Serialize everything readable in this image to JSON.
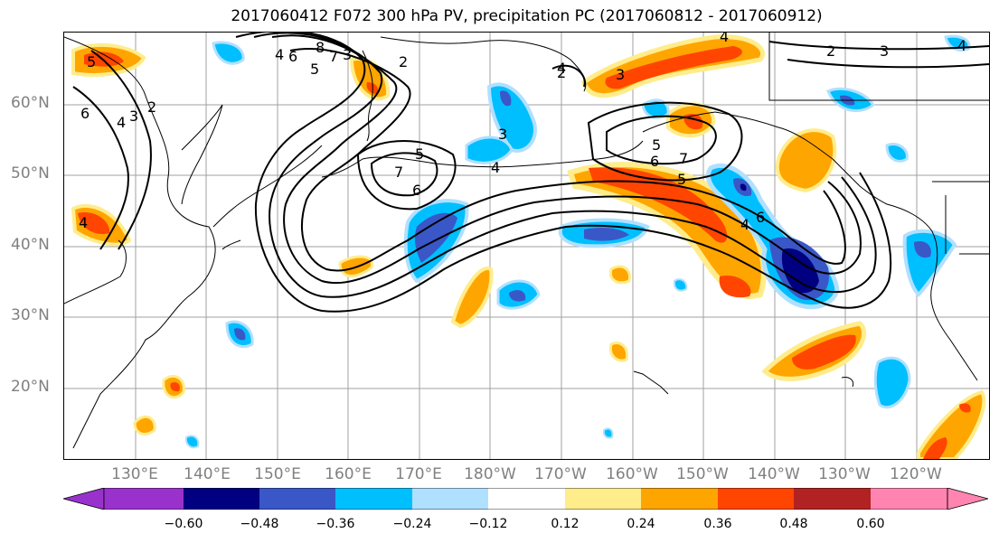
{
  "title": "2017060412 F072 300 hPa PV, precipitation PC (2017060812 - 2017060912)",
  "lat_labels": [
    "60°N",
    "50°N",
    "40°N",
    "30°N",
    "20°N"
  ],
  "lon_labels": [
    "130°E",
    "140°E",
    "150°E",
    "160°E",
    "170°E",
    "180°W",
    "170°W",
    "160°W",
    "150°W",
    "140°W",
    "130°W",
    "120°W"
  ],
  "colorbar": {
    "ticks": [
      "−0.60",
      "−0.48",
      "−0.36",
      "−0.24",
      "−0.12",
      "0.12",
      "0.24",
      "0.36",
      "0.48",
      "0.60"
    ],
    "colors": [
      "#9932cc",
      "#000080",
      "#3a57c8",
      "#00bfff",
      "#b0e0ff",
      "#ffffff",
      "#ffec8b",
      "#ffa500",
      "#ff4500",
      "#b22222",
      "#ff85b0"
    ]
  },
  "contour_labels": [
    "8",
    "7",
    "6",
    "5",
    "4",
    "3",
    "2",
    "5",
    "6",
    "4",
    "3",
    "2",
    "5",
    "7",
    "6",
    "4",
    "3",
    "4",
    "3",
    "2",
    "7",
    "6",
    "5",
    "4",
    "2",
    "3",
    "4",
    "6",
    "5",
    "4",
    "4"
  ],
  "colors": {
    "coast": "#000000",
    "grid": "#a0a0a0",
    "label": "#808080"
  }
}
